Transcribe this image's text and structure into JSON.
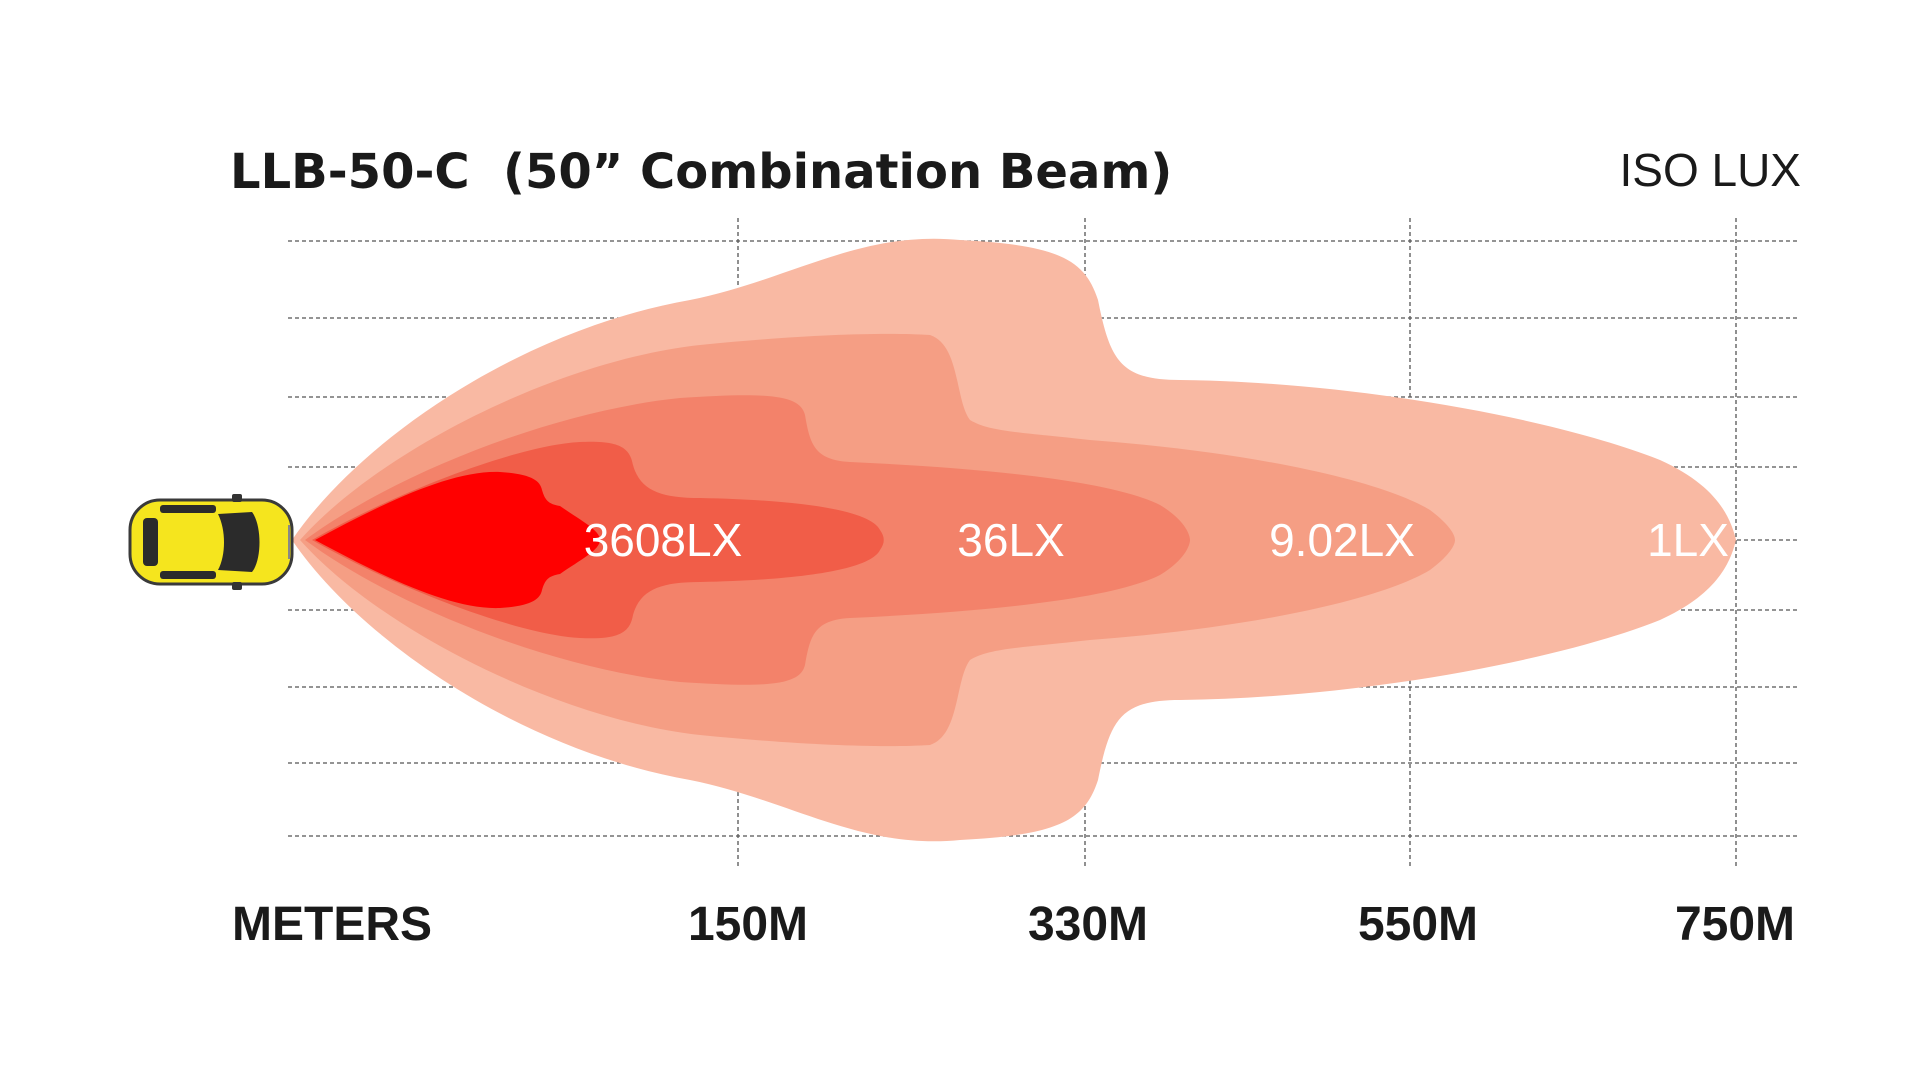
{
  "header": {
    "model": "LLB-50-C",
    "beam_description": "(50” Combination Beam)",
    "chart_kind_label": "ISO LUX"
  },
  "axis": {
    "unit_label": "METERS",
    "ticks": [
      {
        "label": "150M",
        "value": 150
      },
      {
        "label": "330M",
        "value": 330
      },
      {
        "label": "550M",
        "value": 550
      },
      {
        "label": "750M",
        "value": 750
      }
    ]
  },
  "zones": [
    {
      "label": "3608LX",
      "color": "#ff0000"
    },
    {
      "label": "36LX",
      "color": "#f15d48"
    },
    {
      "label": "9.02LX",
      "color": "#f3826a"
    },
    {
      "label": "1LX",
      "color": "#f9b9a3"
    }
  ],
  "colors": {
    "zone_inner": "#ff0000",
    "zone_2": "#f15d48",
    "zone_3": "#f3826a",
    "zone_4": "#f59e84",
    "zone_outer": "#f9b9a3",
    "vehicle_body": "#f5e51e",
    "vehicle_outline": "#3a3a3a"
  },
  "vehicle": {
    "icon": "car-top-view-icon"
  }
}
